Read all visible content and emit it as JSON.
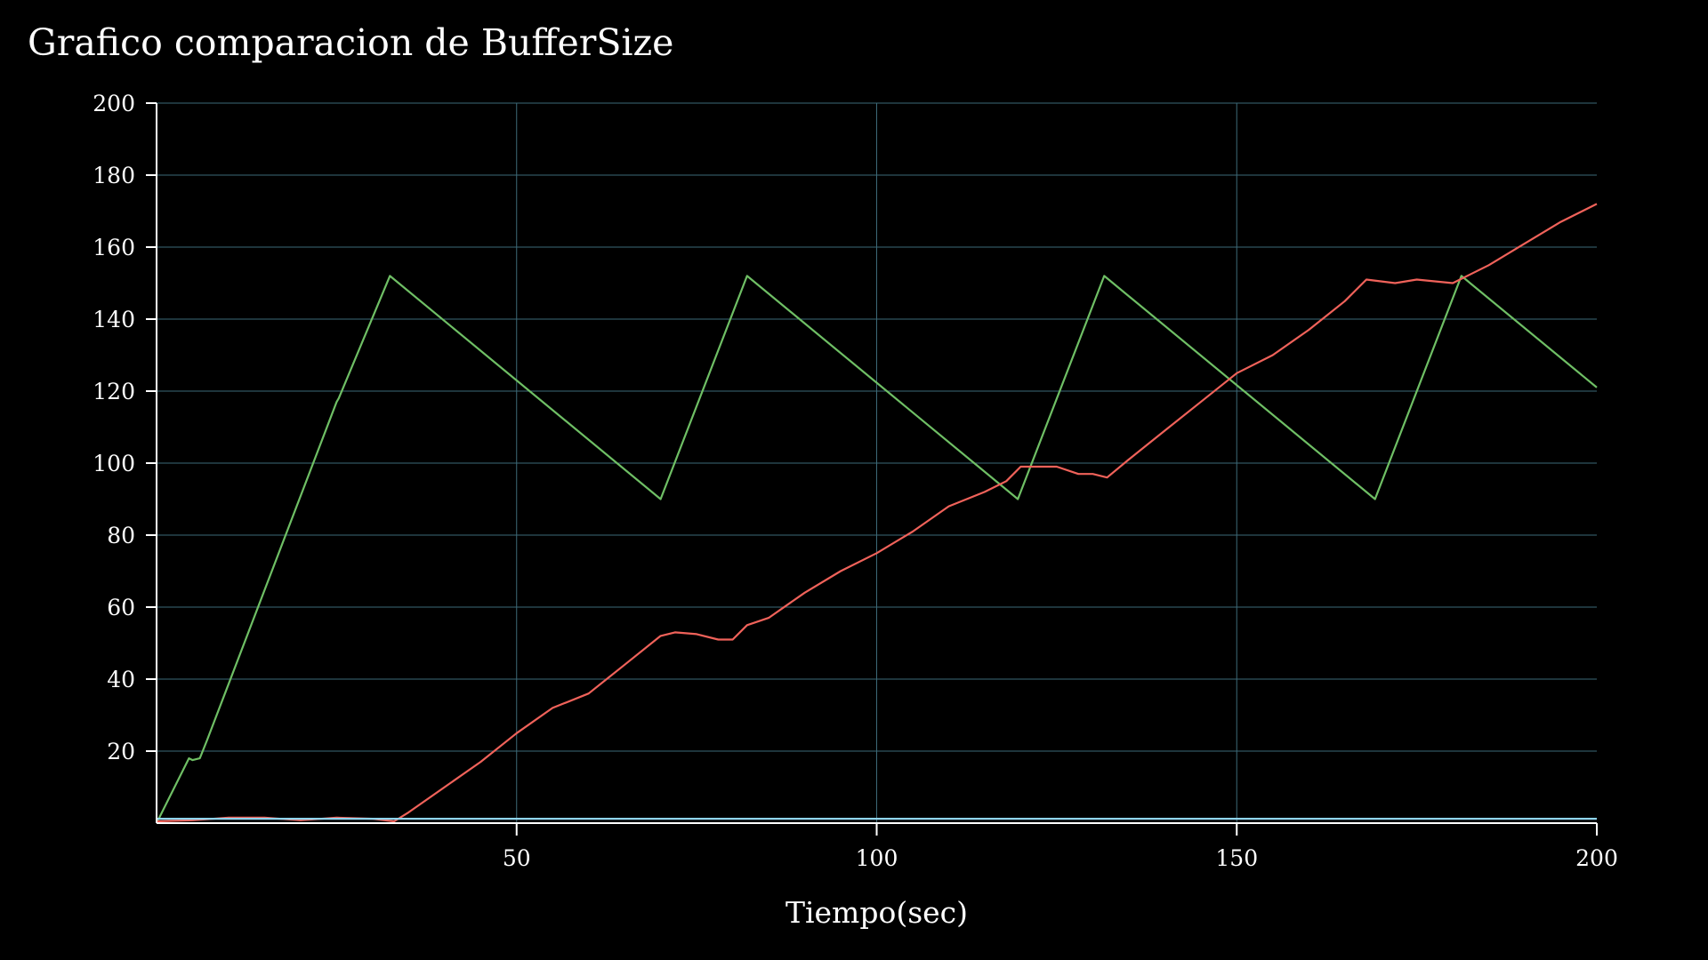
{
  "chart_data": {
    "type": "line",
    "title": "Grafico comparacion de BufferSize",
    "xlabel": "Tiempo(sec)",
    "ylabel": "",
    "xlim": [
      0,
      200
    ],
    "ylim": [
      0,
      200
    ],
    "xticks": [
      50,
      100,
      150,
      200
    ],
    "yticks": [
      20,
      40,
      60,
      80,
      100,
      120,
      140,
      160,
      180,
      200
    ],
    "grid": true,
    "colors": {
      "background": "#000000",
      "grid": "#3d6a78",
      "axis": "#ffffff",
      "text": "#ffffff"
    },
    "series": [
      {
        "color": "#6fbf65",
        "x": [
          0,
          4.5,
          5,
          6,
          7,
          25,
          25.3,
          32.4,
          70,
          82,
          119.6,
          131.6,
          169.2,
          181.2,
          200
        ],
        "y": [
          0,
          18,
          17.5,
          18,
          23,
          117,
          118,
          152,
          90,
          152,
          90,
          152,
          90,
          152,
          121
        ]
      },
      {
        "color": "#f0625a",
        "x": [
          0,
          5,
          10,
          15,
          20,
          25,
          30,
          33,
          35,
          40,
          45,
          50,
          55,
          60,
          65,
          70,
          72,
          75,
          78,
          80,
          82,
          85,
          90,
          95,
          100,
          105,
          110,
          115,
          118,
          120,
          125,
          128,
          130,
          132,
          135,
          140,
          145,
          150,
          155,
          160,
          165,
          168,
          172,
          175,
          180,
          185,
          190,
          195,
          200
        ],
        "y": [
          0.5,
          0.8,
          1.5,
          1.5,
          0.8,
          1.5,
          1.2,
          0.5,
          3,
          10,
          17,
          25,
          32,
          36,
          44,
          52,
          53,
          52.5,
          51,
          51,
          55,
          57,
          64,
          70,
          75,
          81,
          88,
          92,
          95,
          99,
          99,
          97,
          97,
          96,
          101,
          109,
          117,
          125,
          130,
          137,
          145,
          151,
          150,
          151,
          150,
          155,
          161,
          167,
          172
        ]
      },
      {
        "color": "#8fd4ee",
        "x": [
          0,
          200
        ],
        "y": [
          1.2,
          1.2
        ]
      }
    ]
  }
}
